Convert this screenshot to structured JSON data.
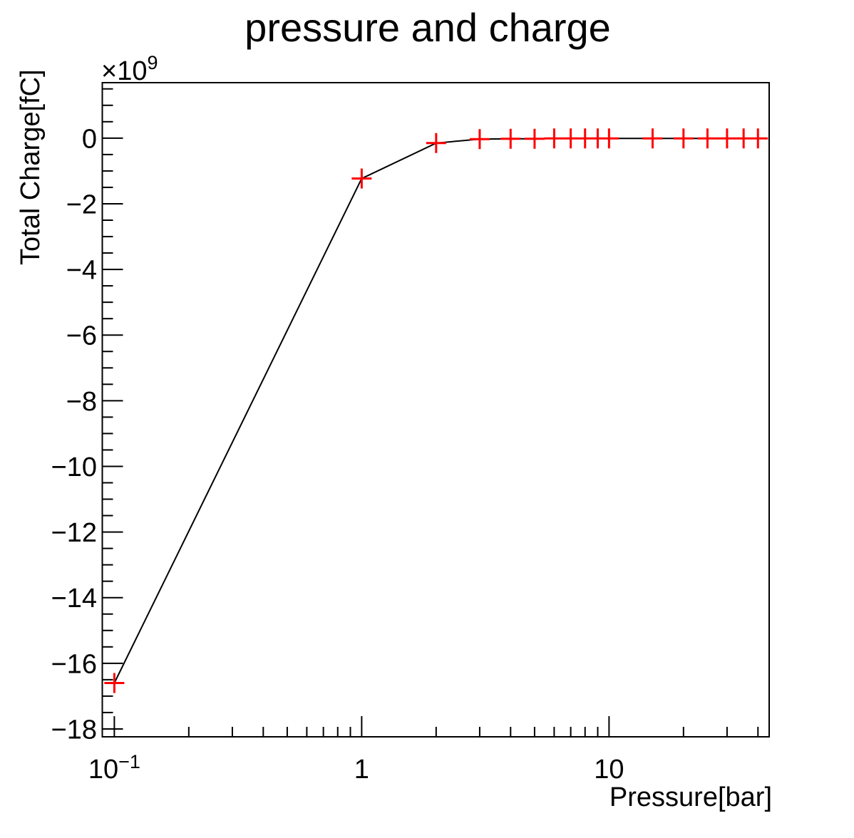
{
  "window": {
    "background": "#ffffff"
  },
  "chart_data": {
    "type": "line",
    "title": "pressure and charge",
    "xlabel": "Pressure[bar]",
    "ylabel": "Total Charge[fC]",
    "grid": false,
    "legend": "none",
    "x_axis": {
      "scale": "log",
      "min": 0.0894,
      "max": 44.4,
      "major_ticks": [
        {
          "value": 0.1,
          "label": "10",
          "sup": "−1"
        },
        {
          "value": 1,
          "label": "1"
        },
        {
          "value": 10,
          "label": "10"
        }
      ],
      "minor_ticks": [
        0.2,
        0.3,
        0.4,
        0.5,
        0.6,
        0.7,
        0.8,
        0.9,
        2,
        3,
        4,
        5,
        6,
        7,
        8,
        9,
        20,
        30,
        40
      ]
    },
    "y_axis": {
      "scale": "linear",
      "unit_multiplier_base": "×10",
      "unit_multiplier_exp": "9",
      "min": -18.24,
      "max": 1.69,
      "minor_step": 0.5,
      "minor_from": 1.5,
      "minor_to": -18,
      "major_ticks": [
        {
          "value": 0,
          "label": "0"
        },
        {
          "value": -2,
          "label": "−2"
        },
        {
          "value": -4,
          "label": "−4"
        },
        {
          "value": -6,
          "label": "−6"
        },
        {
          "value": -8,
          "label": "−8"
        },
        {
          "value": -10,
          "label": "−10"
        },
        {
          "value": -12,
          "label": "−12"
        },
        {
          "value": -14,
          "label": "−14"
        },
        {
          "value": -16,
          "label": "−16"
        },
        {
          "value": -18,
          "label": "−18"
        }
      ]
    },
    "series": [
      {
        "x": [
          0.1,
          1,
          2,
          3,
          4,
          5,
          6,
          7,
          8,
          9,
          10,
          15,
          20,
          25,
          30,
          35,
          40
        ],
        "y_times_1e9": [
          -16.6,
          -1.23,
          -0.15,
          -0.03,
          -0.02,
          -0.02,
          -0.01,
          -0.01,
          -0.01,
          -0.01,
          -0.01,
          -0.01,
          -0.01,
          -0.01,
          -0.01,
          -0.01,
          -0.01
        ],
        "marker": {
          "shape": "plus",
          "color": "#ff0000"
        },
        "line": {
          "color": "#000000"
        }
      }
    ]
  }
}
